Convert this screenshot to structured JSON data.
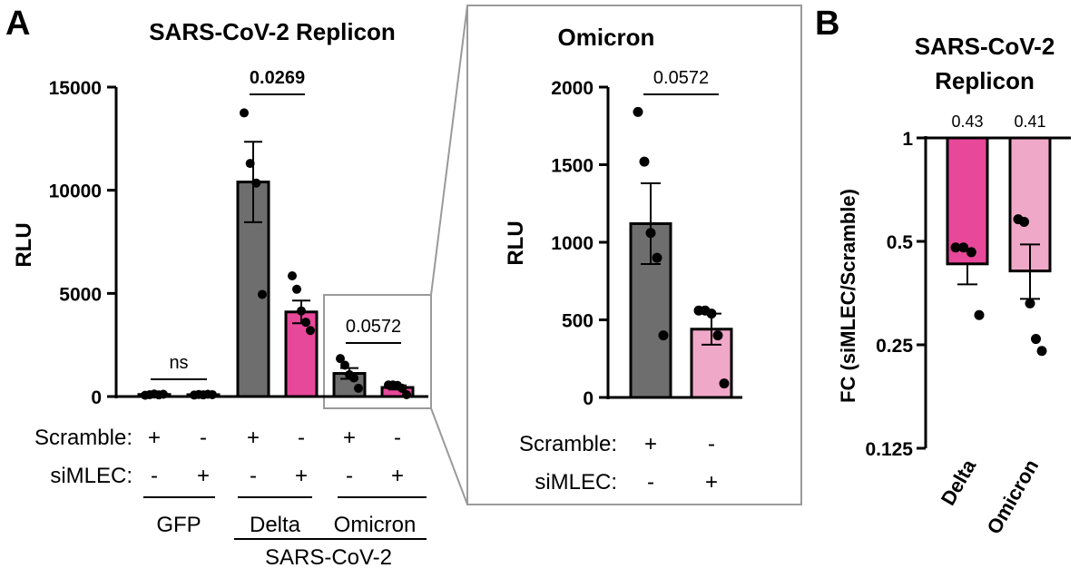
{
  "colors": {
    "scramble": "#6e6e6e",
    "delta_si": "#e8489a",
    "omicron_si": "#f0a8c8",
    "axis": "#000000",
    "inset_border": "#9a9a9a"
  },
  "chart_data": [
    {
      "panel": "A",
      "type": "bar",
      "title": "SARS-CoV-2 Replicon",
      "ylabel": "RLU",
      "ylim": [
        0,
        15000
      ],
      "yticks": [
        "0",
        "5000",
        "10000",
        "15000"
      ],
      "row_labels": [
        "Scramble:",
        "siMLEC:"
      ],
      "scramble_signs": [
        "+",
        "-",
        "+",
        "-",
        "+",
        "-"
      ],
      "simlec_signs": [
        "-",
        "+",
        "-",
        "+",
        "-",
        "+"
      ],
      "group_labels": [
        "GFP",
        "Delta",
        "Omicron"
      ],
      "super_label": "SARS-CoV-2",
      "bars": [
        {
          "group": "GFP",
          "condition": "Scramble",
          "mean": 100,
          "sem": 0,
          "points": [
            60,
            90,
            120,
            80,
            110
          ]
        },
        {
          "group": "GFP",
          "condition": "siMLEC",
          "mean": 90,
          "sem": 0,
          "points": [
            70,
            100,
            80,
            110,
            90
          ]
        },
        {
          "group": "Delta",
          "condition": "Scramble",
          "mean": 10400,
          "sem": 1950,
          "points": [
            13750,
            11300,
            10350,
            4950
          ]
        },
        {
          "group": "Delta",
          "condition": "siMLEC",
          "mean": 4100,
          "sem": 550,
          "points": [
            5850,
            5200,
            4150,
            3600,
            3200
          ]
        },
        {
          "group": "Omicron",
          "condition": "Scramble",
          "mean": 1120,
          "sem": 260,
          "points": [
            1840,
            1520,
            1060,
            900,
            400
          ]
        },
        {
          "group": "Omicron",
          "condition": "siMLEC",
          "mean": 440,
          "sem": 100,
          "points": [
            560,
            560,
            540,
            400,
            90
          ]
        }
      ],
      "comparisons": [
        {
          "label": "ns",
          "bars": [
            0,
            1
          ]
        },
        {
          "label": "0.0269",
          "bars": [
            2,
            3
          ],
          "bold": true
        },
        {
          "label": "0.0572",
          "bars": [
            4,
            5
          ]
        }
      ]
    },
    {
      "panel": "A-inset",
      "type": "bar",
      "title": "Omicron",
      "ylabel": "RLU",
      "ylim": [
        0,
        2000
      ],
      "yticks": [
        "0",
        "500",
        "1000",
        "1500",
        "2000"
      ],
      "row_labels": [
        "Scramble:",
        "siMLEC:"
      ],
      "scramble_signs": [
        "+",
        "-"
      ],
      "simlec_signs": [
        "-",
        "+"
      ],
      "bars": [
        {
          "condition": "Scramble",
          "mean": 1120,
          "sem": 260,
          "points": [
            1840,
            1520,
            1060,
            900,
            400
          ]
        },
        {
          "condition": "siMLEC",
          "mean": 440,
          "sem": 100,
          "points": [
            560,
            560,
            540,
            400,
            90
          ]
        }
      ],
      "comparisons": [
        {
          "label": "0.0572",
          "bars": [
            0,
            1
          ]
        }
      ]
    },
    {
      "panel": "B",
      "type": "bar",
      "title_lines": [
        "SARS-CoV-2",
        "Replicon"
      ],
      "ylabel": "FC (siMLEC/Scramble)",
      "yscale": "log2",
      "ylim": [
        0.125,
        1
      ],
      "yticks": [
        "0.125",
        "0.25",
        "0.5",
        "1"
      ],
      "categories": [
        "Delta",
        "Omicron"
      ],
      "bars": [
        {
          "category": "Delta",
          "value": 0.43,
          "label": "0.43",
          "sem_low": 0.375,
          "sem_high": 0.43,
          "points": [
            0.48,
            0.48,
            0.465,
            0.305
          ]
        },
        {
          "category": "Omicron",
          "value": 0.41,
          "label": "0.41",
          "sem_low": 0.34,
          "sem_high": 0.49,
          "points": [
            0.58,
            0.57,
            0.33,
            0.26,
            0.24
          ]
        }
      ]
    }
  ]
}
